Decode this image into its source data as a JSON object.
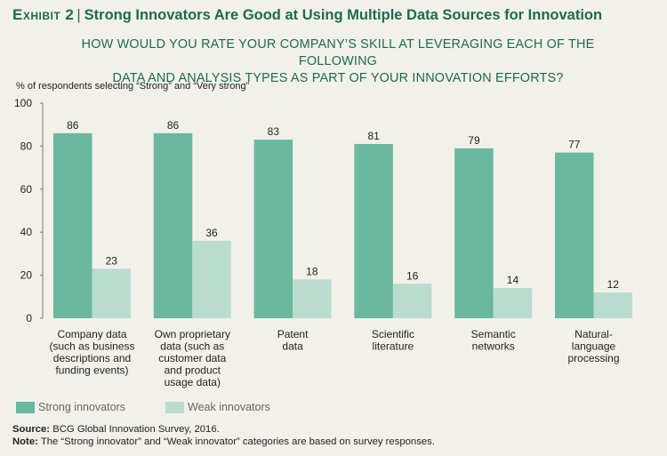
{
  "header": {
    "exhibit_label": "Exhibit 2",
    "title": "Strong Innovators Are Good at Using Multiple Data Sources for Innovation"
  },
  "question_lines": [
    "HOW WOULD YOU RATE YOUR COMPANY’S SKILL AT LEVERAGING EACH OF THE FOLLOWING",
    "DATA AND ANALYSIS TYPES AS PART OF YOUR INNOVATION EFFORTS?"
  ],
  "colors": {
    "background": "#f1f1ea",
    "title": "#1d6b4f",
    "strong": "#6ab89e",
    "weak": "#badcce"
  },
  "chart_data": {
    "type": "bar",
    "ylabel": "% of respondents selecting “Strong” and “Very strong”",
    "ylim": [
      0,
      100
    ],
    "yticks": [
      0,
      20,
      40,
      60,
      80,
      100
    ],
    "grid": false,
    "legend_position": "bottom-left",
    "categories": [
      [
        "Company data",
        "(such as business",
        "descriptions and",
        "funding events)"
      ],
      [
        "Own proprietary",
        "data (such as",
        "customer data",
        "and product",
        "usage data)"
      ],
      [
        "Patent",
        "data"
      ],
      [
        "Scientific",
        "literature"
      ],
      [
        "Semantic",
        "networks"
      ],
      [
        "Natural-",
        "language",
        "processing"
      ]
    ],
    "series": [
      {
        "name": "Strong innovators",
        "color": "#6ab89e",
        "values": [
          86,
          86,
          83,
          81,
          79,
          77
        ]
      },
      {
        "name": "Weak innovators",
        "color": "#badcce",
        "values": [
          23,
          36,
          18,
          16,
          14,
          12
        ]
      }
    ]
  },
  "footer": {
    "source_label": "Source:",
    "source_text": "BCG Global Innovation Survey, 2016.",
    "note_label": "Note:",
    "note_text": "The “Strong innovator” and “Weak innovator” categories are based on survey responses."
  }
}
